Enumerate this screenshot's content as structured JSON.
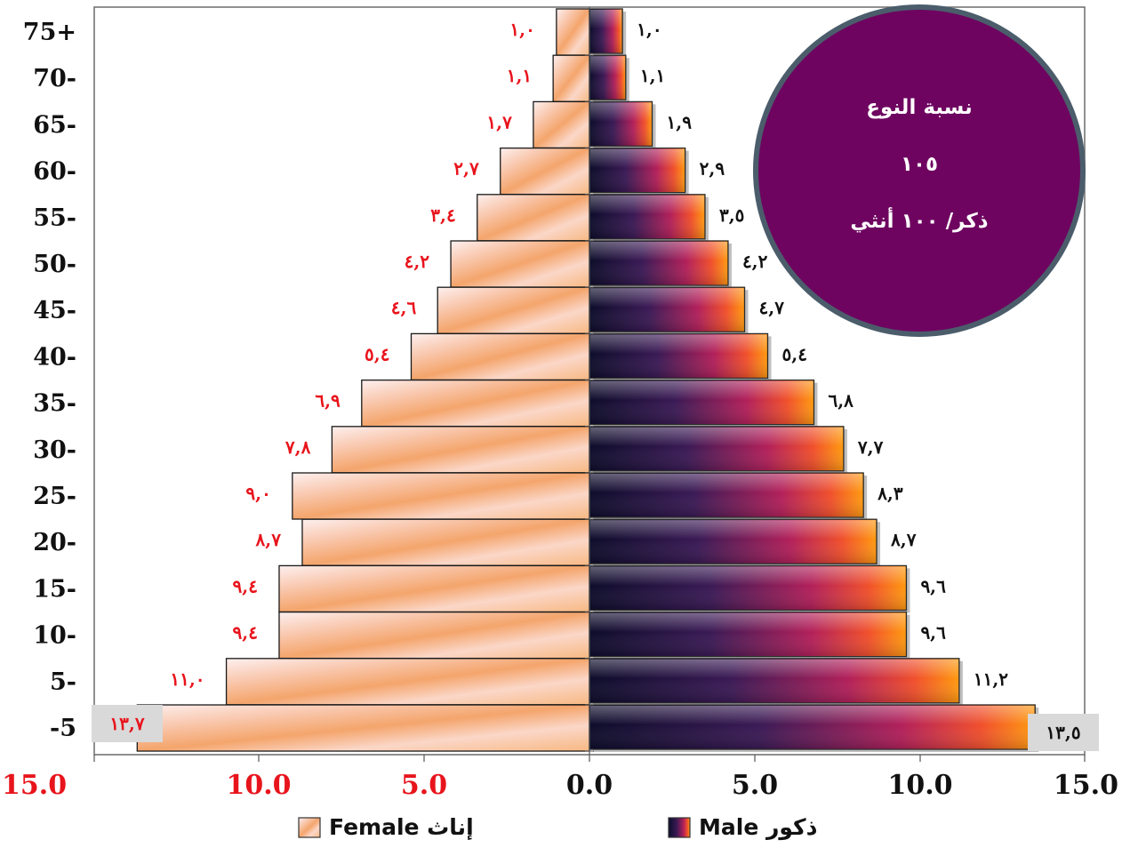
{
  "chart_data": {
    "type": "bar",
    "subtype": "population-pyramid",
    "categories": [
      "75+",
      "70-",
      "65-",
      "60-",
      "55-",
      "50-",
      "45-",
      "40-",
      "35-",
      "30-",
      "25-",
      "20-",
      "15-",
      "10-",
      "5-",
      "-5"
    ],
    "series": [
      {
        "name": "إناث Female",
        "side": "left",
        "values": [
          1.0,
          1.1,
          1.7,
          2.7,
          3.4,
          4.2,
          4.6,
          5.4,
          6.9,
          7.8,
          9.0,
          8.7,
          9.4,
          9.4,
          11.0,
          13.7
        ],
        "labels": [
          "١,٠",
          "١,١",
          "١,٧",
          "٢,٧",
          "٣,٤",
          "٤,٢",
          "٤,٦",
          "٥,٤",
          "٦,٩",
          "٧,٨",
          "٩,٠",
          "٨,٧",
          "٩,٤",
          "٩,٤",
          "١١,٠",
          "١٣,٧"
        ],
        "label_color": "#e8141c"
      },
      {
        "name": "ذكور Male",
        "side": "right",
        "values": [
          1.0,
          1.1,
          1.9,
          2.9,
          3.5,
          4.2,
          4.7,
          5.4,
          6.8,
          7.7,
          8.3,
          8.7,
          9.6,
          9.6,
          11.2,
          13.5
        ],
        "labels": [
          "١,٠",
          "١,١",
          "١,٩",
          "٢,٩",
          "٣,٥",
          "٤,٢",
          "٤,٧",
          "٥,٤",
          "٦,٨",
          "٧,٧",
          "٨,٣",
          "٨,٧",
          "٩,٦",
          "٩,٦",
          "١١,٢",
          "١٣,٥"
        ],
        "label_color": "#111111"
      }
    ],
    "xlim": [
      0,
      15
    ],
    "x_ticks": [
      "15.0",
      "10.0",
      "5.0",
      "0.0",
      "5.0",
      "10.0",
      "15.0"
    ],
    "x_tick_colors": {
      "left": "#e8141c",
      "right": "#111111"
    },
    "legend": {
      "position": "bottom",
      "female_label": "إناث Female",
      "male_label": "ذكور Male"
    },
    "grid": false,
    "colors": {
      "female_light": "#fdf0f0",
      "female_mid": "#f9c9b0",
      "female_dark": "#f4a56c",
      "male_dark": "#0d0c2a",
      "male_mid": "#b2205a",
      "male_end": "#ff9a10",
      "badge": "#6e0460",
      "badge_border": "#4b5d6b",
      "highlight_box": "#d9d9d9"
    }
  },
  "sex_ratio_badge": {
    "title": "نسبة النوع",
    "value": "١٠٥",
    "unit": "ذكر/ ١٠٠ أنثي"
  }
}
